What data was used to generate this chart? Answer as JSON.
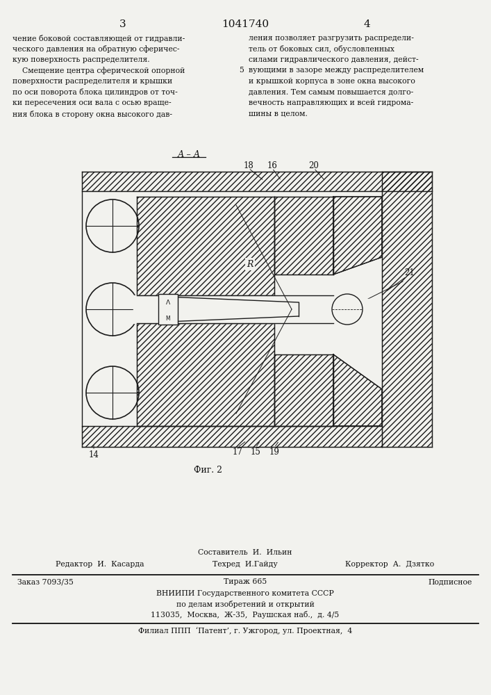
{
  "page_number_left": "3",
  "patent_number": "1041740",
  "page_number_right": "4",
  "text_left": [
    "чение боковой составляющей от гидравли-",
    "ческого давления на обратную сферичес-",
    "кую поверхность распределителя.",
    "    Смещение центра сферической опорной",
    "поверхности распределителя и крышки",
    "по оси поворота блока цилиндров от точ-",
    "ки пересечения оси вала с осью враще-",
    "ния блока в сторону окна высокого дав-"
  ],
  "text_right": [
    "ления позволяет разгрузить распредели-",
    "тель от боковых сил, обусловленных",
    "силами гидравлического давления, дейст-",
    "вующими в зазоре между распределителем",
    "и крышкой корпуса в зоне окна высокого",
    "давления. Тем самым повышается долго-",
    "вечность направляющих и всей гидрома-",
    "шины в целом."
  ],
  "line_number_5": "5",
  "section_label": "А – А",
  "fig_caption": "Фиг. 2",
  "bg_color": "#f2f2ee",
  "line_color": "#1a1a1a",
  "text_color": "#111111",
  "footer_sestavitel": "Составитель  И.  Ильин",
  "footer_editor": "Редактор  И.  Касарда",
  "footer_tehred": "Техред  И.Гайду",
  "footer_korrektor": "Корректор  А.  Дзятко",
  "footer_zakaz": "Заказ 7093/35",
  "footer_tirazh": "Тираж 665",
  "footer_podpisnoe": "Подписное",
  "footer_vnipi1": "ВНИИПИ Государственного комитета СССР",
  "footer_vnipi2": "по делам изобретений и открытий",
  "footer_vnipi3": "113035,  Москва,  Ж-35,  Раушская наб.,  д. 4/5",
  "footer_filial": "Филиал ППП  ‘Патент’, г. Ужгород, ул. Проектная,  4"
}
